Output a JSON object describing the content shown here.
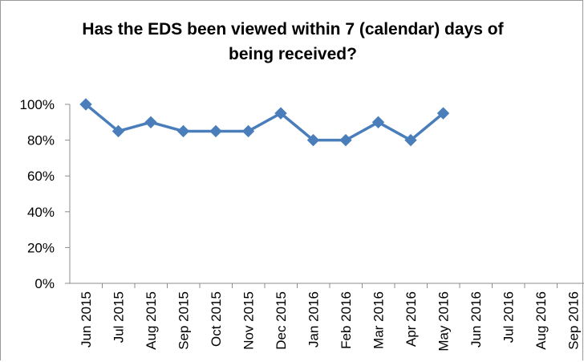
{
  "chart_data": {
    "type": "line",
    "title": "Has the EDS been viewed  within 7 (calendar) days of being received?",
    "title_lines": [
      "Has the EDS been viewed  within 7 (calendar) days of",
      "being received?"
    ],
    "categories": [
      "Jun 2015",
      "Jul 2015",
      "Aug 2015",
      "Sep 2015",
      "Oct 2015",
      "Nov 2015",
      "Dec 2015",
      "Jan 2016",
      "Feb 2016",
      "Mar 2016",
      "Apr 2016",
      "May 2016",
      "Jun 2016",
      "Jul 2016",
      "Aug 2016",
      "Sep 2016"
    ],
    "series": [
      {
        "values": [
          100,
          85,
          90,
          85,
          85,
          85,
          95,
          80,
          80,
          90,
          80,
          95,
          null,
          null,
          null,
          null
        ]
      }
    ],
    "y_ticks": [
      "0%",
      "20%",
      "40%",
      "60%",
      "80%",
      "100%"
    ],
    "ylim": [
      0,
      100
    ],
    "y_unit": "%",
    "grid": false,
    "legend": "none",
    "line_color": "#4a7ebb",
    "marker": "diamond"
  }
}
